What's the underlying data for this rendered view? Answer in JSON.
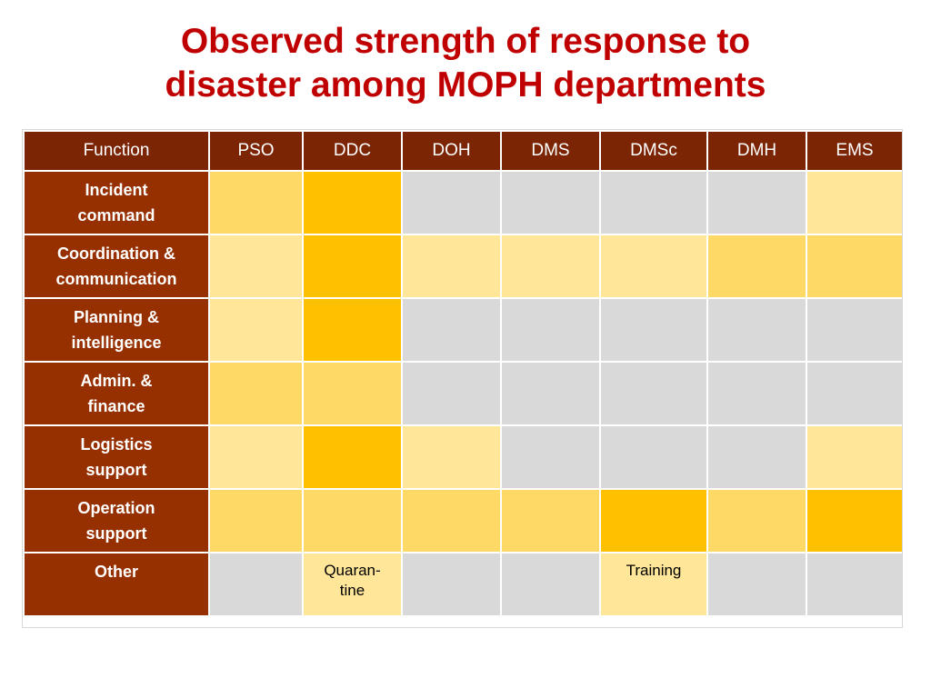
{
  "title": {
    "line1": "Observed strength of response to",
    "line2": "disaster among MOPH departments"
  },
  "colors": {
    "title": "#c00000",
    "header_bg": "#7b2505",
    "row_header_bg": "#973001",
    "level_strong": "#ffc000",
    "level_medium": "#ffd966",
    "level_weak": "#ffe699",
    "level_none": "#d9d9d9"
  },
  "chart_data": {
    "type": "table",
    "corner_label": "Function",
    "columns": [
      "PSO",
      "DDC",
      "DOH",
      "DMS",
      "DMSc",
      "DMH",
      "EMS"
    ],
    "rows": [
      {
        "label": "Incident\ncommand",
        "levels": [
          "medium",
          "strong",
          "none",
          "none",
          "none",
          "none",
          "weak"
        ],
        "texts": [
          "",
          "",
          "",
          "",
          "",
          "",
          ""
        ]
      },
      {
        "label": "Coordination &\ncommunication",
        "levels": [
          "weak",
          "strong",
          "weak",
          "weak",
          "weak",
          "medium",
          "medium"
        ],
        "texts": [
          "",
          "",
          "",
          "",
          "",
          "",
          ""
        ]
      },
      {
        "label": "Planning  &\nintelligence",
        "levels": [
          "weak",
          "strong",
          "none",
          "none",
          "none",
          "none",
          "none"
        ],
        "texts": [
          "",
          "",
          "",
          "",
          "",
          "",
          ""
        ]
      },
      {
        "label": "Admin.  &\nfinance",
        "levels": [
          "medium",
          "medium",
          "none",
          "none",
          "none",
          "none",
          "none"
        ],
        "texts": [
          "",
          "",
          "",
          "",
          "",
          "",
          ""
        ]
      },
      {
        "label": "Logistics\nsupport",
        "levels": [
          "weak",
          "strong",
          "weak",
          "none",
          "none",
          "none",
          "weak"
        ],
        "texts": [
          "",
          "",
          "",
          "",
          "",
          "",
          ""
        ]
      },
      {
        "label": "Operation\nsupport",
        "levels": [
          "medium",
          "medium",
          "medium",
          "medium",
          "strong",
          "medium",
          "strong"
        ],
        "texts": [
          "",
          "",
          "",
          "",
          "",
          "",
          ""
        ]
      },
      {
        "label": "Other",
        "levels": [
          "none",
          "weak",
          "none",
          "none",
          "weak",
          "none",
          "none"
        ],
        "texts": [
          "",
          "Quaran-\ntine",
          "",
          "",
          "Training",
          "",
          ""
        ]
      }
    ]
  }
}
